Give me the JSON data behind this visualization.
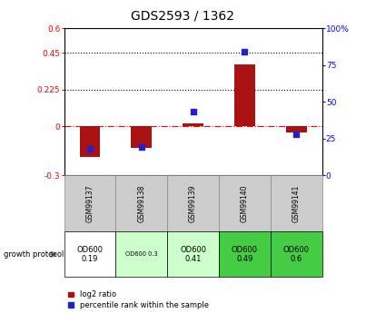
{
  "title": "GDS2593 / 1362",
  "samples": [
    "GSM99137",
    "GSM99138",
    "GSM99139",
    "GSM99140",
    "GSM99141"
  ],
  "log2_ratio": [
    -0.19,
    -0.13,
    0.02,
    0.38,
    -0.04
  ],
  "percentile_rank": [
    18,
    19,
    43,
    84,
    28
  ],
  "ylim_left": [
    -0.3,
    0.6
  ],
  "ylim_right": [
    0,
    100
  ],
  "yticks_left": [
    -0.3,
    0,
    0.225,
    0.45,
    0.6
  ],
  "yticks_right": [
    0,
    25,
    50,
    75,
    100
  ],
  "ytick_labels_left": [
    "-0.3",
    "0",
    "0.225",
    "0.45",
    "0.6"
  ],
  "ytick_labels_right": [
    "0",
    "25",
    "50",
    "75",
    "100%"
  ],
  "hlines": [
    0.225,
    0.45
  ],
  "bar_color": "#aa1111",
  "dot_color": "#2222cc",
  "bar_width": 0.4,
  "growth_protocol_labels": [
    "OD600\n0.19",
    "OD600 0.3",
    "OD600\n0.41",
    "OD600\n0.49",
    "OD600\n0.6"
  ],
  "growth_protocol_colors": [
    "#ffffff",
    "#ccffcc",
    "#ccffcc",
    "#44cc44",
    "#44cc44"
  ],
  "growth_protocol_text_small": [
    false,
    true,
    false,
    false,
    false
  ],
  "legend_bar_label": "log2 ratio",
  "legend_dot_label": "percentile rank within the sample",
  "cell_gray": "#cccccc",
  "cell_edge": "#888888"
}
